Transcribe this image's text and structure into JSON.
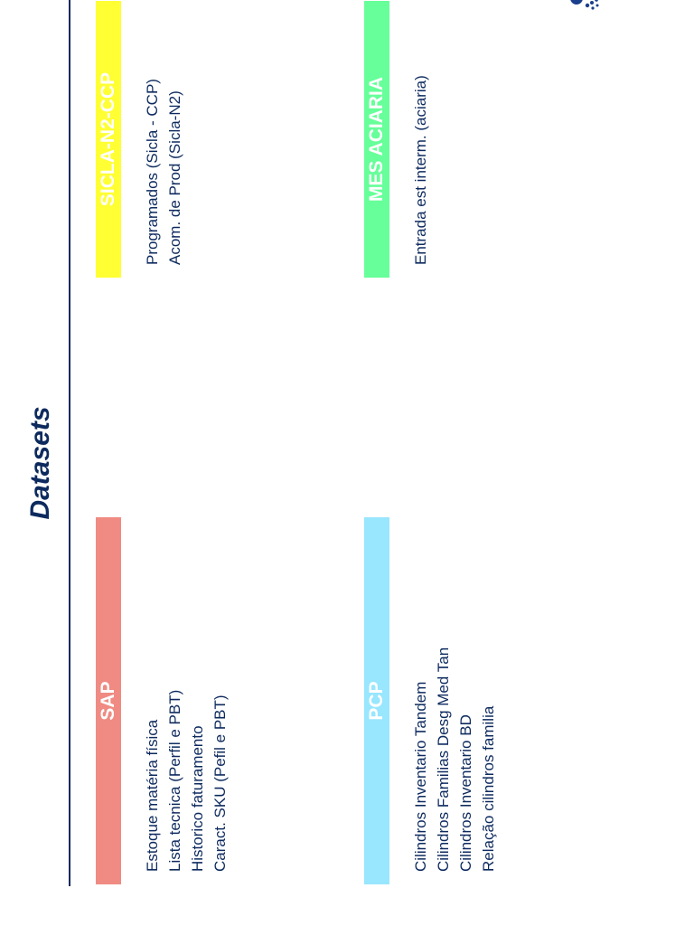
{
  "slide": {
    "title": "Datasets"
  },
  "colors": {
    "title": "#0d2a5e",
    "text": "#0d2a5e",
    "sap": "#ef8b82",
    "sicla": "#ffff33",
    "pcp": "#99e6ff",
    "mes": "#66ff99"
  },
  "logo": {
    "icon": "company-logo-icon"
  },
  "datasets": {
    "sap": {
      "name": "SAP",
      "items": [
        "Estoque matéria física",
        "Lista tecnica (Perfil e PBT)",
        "Historico faturamento",
        "Caract. SKU (Pefil e PBT)"
      ]
    },
    "sicla": {
      "name": "SICLA-N2-CCP",
      "items": [
        "Programados (Sicla - CCP)",
        "Acom. de Prod (Sicla-N2)"
      ]
    },
    "pcp": {
      "name": "PCP",
      "items": [
        "Cilindros Inventario Tandem",
        "Cilindros Familias Desg Med Tan",
        "Cilindros Inventario BD",
        "Relação cilindros familia"
      ]
    },
    "mes": {
      "name": "MES ACIARIA",
      "items": [
        "Entrada est interm. (aciaria)"
      ]
    }
  }
}
